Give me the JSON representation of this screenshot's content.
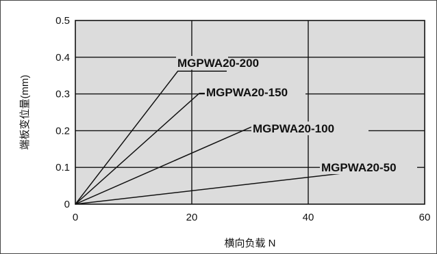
{
  "chart_data": {
    "type": "line",
    "xlabel": "横向负载 N",
    "ylabel": "端板变位量(mm)",
    "xlim": [
      0,
      60
    ],
    "ylim": [
      0,
      0.5
    ],
    "x_ticks": [
      "0",
      "20",
      "40",
      "60"
    ],
    "y_ticks": [
      "0",
      "0.1",
      "0.2",
      "0.3",
      "0.4",
      "0.5"
    ],
    "grid": true,
    "background_color": "#dcdcdc",
    "line_color": "#111111",
    "series": [
      {
        "name": "MGPWA20-200",
        "x": [
          0,
          17.6
        ],
        "y": [
          0,
          0.362
        ]
      },
      {
        "name": "MGPWA20-150",
        "x": [
          0,
          21.3
        ],
        "y": [
          0,
          0.302
        ]
      },
      {
        "name": "MGPWA20-100",
        "x": [
          0,
          30.2
        ],
        "y": [
          0,
          0.21
        ]
      },
      {
        "name": "MGPWA20-50",
        "x": [
          0,
          47
        ],
        "y": [
          0,
          0.086
        ]
      }
    ]
  }
}
